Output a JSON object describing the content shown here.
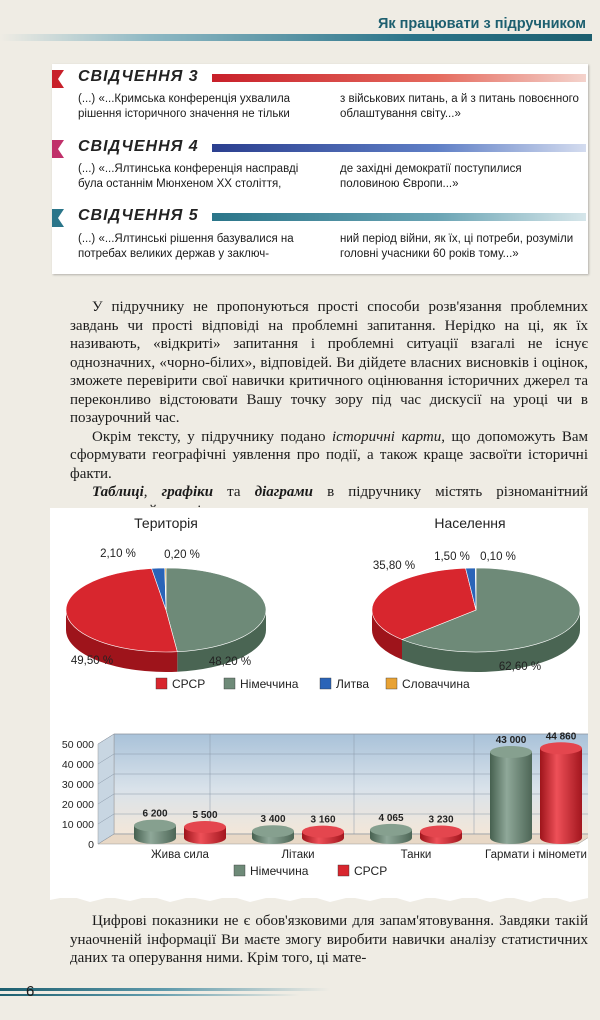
{
  "header": {
    "title": "Як працювати з підручником"
  },
  "evidence": [
    {
      "title": "СВІДЧЕННЯ 3",
      "color": "#c8202a",
      "left": "(...) «...Кримська конференція ухвалила рішення історичного значення не тільки",
      "right": "з військових питань, а й з питань повоєнного облаштування світу...»"
    },
    {
      "title": "СВІДЧЕННЯ 4",
      "color": "#c0306a",
      "left": "(...) «...Ялтинська конференція насправді була останнім Мюнхеном XX століття,",
      "right": "де західні демократії поступилися половиною Європи...»"
    },
    {
      "title": "СВІДЧЕННЯ 5",
      "color": "#2a7589",
      "left": "(...) «...Ялтинські рішення базувалися на потребах великих держав у заключ-",
      "right": "ний період війни, як їх, ці потреби, розуміли головні учасники 60 років тому...»"
    }
  ],
  "body": {
    "p1": "У підручнику не пропонуються прості способи розв'язання проблемних завдань чи прості відповіді на проблемні запитання. Нерідко на ці, як їх називають, «відкриті» запитання і проблемні ситуації взагалі не існує однозначних, «чорно-білих», відповідей. Ви дійдете власних висновків і оцінок, зможете перевірити свої навички критичного оцінювання історичних джерел та переконливо відстоювати Вашу точку зору під час дискусії на уроці чи в позаурочний час.",
    "p2a": "Окрім тексту, у підручнику подано ",
    "p2em": "історичні карти",
    "p2b": ", що допоможуть Вам сформувати географічні уявлення про події, а також краще засвоїти історичні факти.",
    "p3em1": "Таблиці",
    "p3sep1": ", ",
    "p3em2": "графіки",
    "p3sep2": " та ",
    "p3em3": "діаграми",
    "p3b": " в підручнику містять різноманітний статистичний матеріал.",
    "p4": "Цифрові показники не є обов'язковими для запам'ятовування. Завдяки такій унаочненій інформації Ви маєте змогу виробити навички аналізу статистичних даних та оперування ними. Крім того, ці мате-"
  },
  "colors": {
    "ussr": "#d8262e",
    "germany": "#6e8a78",
    "lithuania": "#2a64b8",
    "slovakia": "#e8a234"
  },
  "chart_data": [
    {
      "type": "pie",
      "title": "Територія",
      "labels": [
        "СРСР",
        "Німеччина",
        "Литва",
        "Словаччина"
      ],
      "values": [
        49.5,
        48.2,
        2.1,
        0.2
      ],
      "value_labels": [
        "49,50 %",
        "48,20 %",
        "2,10 %",
        "0,20 %"
      ]
    },
    {
      "type": "pie",
      "title": "Населення",
      "labels": [
        "СРСР",
        "Німеччина",
        "Литва",
        "Словаччина"
      ],
      "values": [
        35.8,
        62.6,
        1.5,
        0.1
      ],
      "value_labels": [
        "35,80 %",
        "62,60 %",
        "1,50 %",
        "0,10 %"
      ]
    },
    {
      "type": "bar",
      "categories": [
        "Жива сила",
        "Літаки",
        "Танки",
        "Гармати і міномети"
      ],
      "series": [
        {
          "name": "Німеччина",
          "values": [
            6200,
            3400,
            4065,
            43000
          ],
          "value_labels": [
            "6 200",
            "3 400",
            "4 065",
            "43 000"
          ]
        },
        {
          "name": "СРСР",
          "values": [
            5500,
            3160,
            3230,
            44860
          ],
          "value_labels": [
            "5 500",
            "3 160",
            "3 230",
            "44 860"
          ]
        }
      ],
      "ylim": [
        0,
        50000
      ],
      "yticks": [
        "50 000",
        "40 000",
        "30 000",
        "20 000",
        "10 000",
        "0"
      ],
      "yticks_values": [
        50000,
        40000,
        30000,
        20000,
        10000,
        0
      ]
    }
  ],
  "footer": {
    "page_number": "6"
  }
}
